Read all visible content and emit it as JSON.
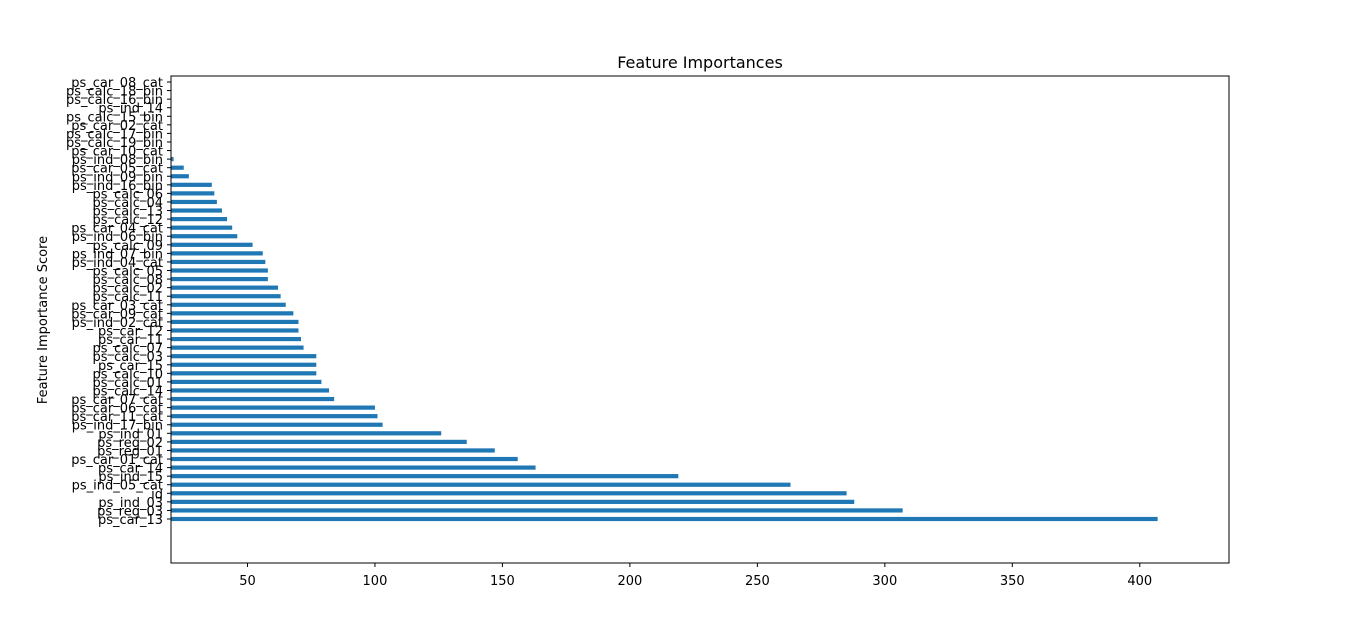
{
  "chart_data": {
    "type": "bar",
    "orientation": "horizontal",
    "title": "Feature Importances",
    "xlabel": "",
    "ylabel": "Feature Importance Score",
    "xlim": [
      20,
      435
    ],
    "x_ticks": [
      50,
      100,
      150,
      200,
      250,
      300,
      350,
      400
    ],
    "grid": false,
    "color": "#1f77b4",
    "categories": [
      "ps_car_13",
      "ps_reg_03",
      "ps_ind_03",
      "id",
      "ps_ind_05_cat",
      "ps_ind_15",
      "ps_car_14",
      "ps_car_01_cat",
      "ps_reg_01",
      "ps_reg_02",
      "ps_ind_01",
      "ps_ind_17_bin",
      "ps_car_11_cat",
      "ps_car_06_cat",
      "ps_car_07_cat",
      "ps_calc_14",
      "ps_calc_01",
      "ps_calc_10",
      "ps_car_15",
      "ps_calc_03",
      "ps_calc_07",
      "ps_car_11",
      "ps_car_12",
      "ps_ind_02_cat",
      "ps_car_09_cat",
      "ps_car_03_cat",
      "ps_calc_11",
      "ps_calc_02",
      "ps_calc_08",
      "ps_calc_05",
      "ps_ind_04_cat",
      "ps_ind_07_bin",
      "ps_calc_09",
      "ps_ind_06_bin",
      "ps_car_04_cat",
      "ps_calc_12",
      "ps_calc_13",
      "ps_calc_04",
      "ps_calc_06",
      "ps_ind_16_bin",
      "ps_ind_09_bin",
      "ps_car_05_cat",
      "ps_ind_08_bin",
      "ps_car_10_cat",
      "ps_calc_19_bin",
      "ps_calc_17_bin",
      "ps_car_02_cat",
      "ps_calc_15_bin",
      "ps_ind_14",
      "ps_calc_16_bin",
      "ps_calc_18_bin",
      "ps_car_08_cat"
    ],
    "values": [
      407,
      307,
      288,
      285,
      263,
      219,
      163,
      156,
      147,
      136,
      126,
      103,
      101,
      100,
      84,
      82,
      79,
      77,
      77,
      77,
      72,
      71,
      70,
      70,
      68,
      65,
      63,
      62,
      58,
      58,
      57,
      56,
      52,
      46,
      44,
      42,
      40,
      38,
      37,
      36,
      27,
      25,
      21,
      0,
      0,
      0,
      0,
      0,
      0,
      0,
      0,
      0
    ]
  }
}
